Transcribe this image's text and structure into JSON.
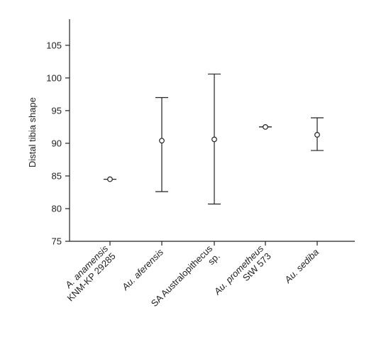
{
  "chart_data": {
    "type": "scatter",
    "title": "",
    "xlabel": "",
    "ylabel": "Distal tibia shape",
    "ylim": [
      75,
      109
    ],
    "yticks": [
      75,
      80,
      85,
      90,
      95,
      100,
      105
    ],
    "grid": false,
    "categories": [
      {
        "lines": [
          "A. anamensis",
          "KNM-KP 29285"
        ],
        "italic": [
          true,
          false
        ]
      },
      {
        "lines": [
          "Au. aferensis"
        ],
        "italic": [
          true
        ]
      },
      {
        "lines": [
          "SA Australopithecus",
          "sp."
        ],
        "italic": [
          false,
          false
        ]
      },
      {
        "lines": [
          "Au. prometheus",
          "StW 573"
        ],
        "italic": [
          true,
          false
        ]
      },
      {
        "lines": [
          "Au. sediba"
        ],
        "italic": [
          true
        ]
      }
    ],
    "points": [
      {
        "mean": 84.5,
        "low": 84.5,
        "high": 84.5
      },
      {
        "mean": 90.4,
        "low": 82.6,
        "high": 97.0
      },
      {
        "mean": 90.6,
        "low": 80.7,
        "high": 100.6
      },
      {
        "mean": 92.5,
        "low": 92.5,
        "high": 92.5
      },
      {
        "mean": 91.3,
        "low": 88.9,
        "high": 93.9
      }
    ]
  }
}
